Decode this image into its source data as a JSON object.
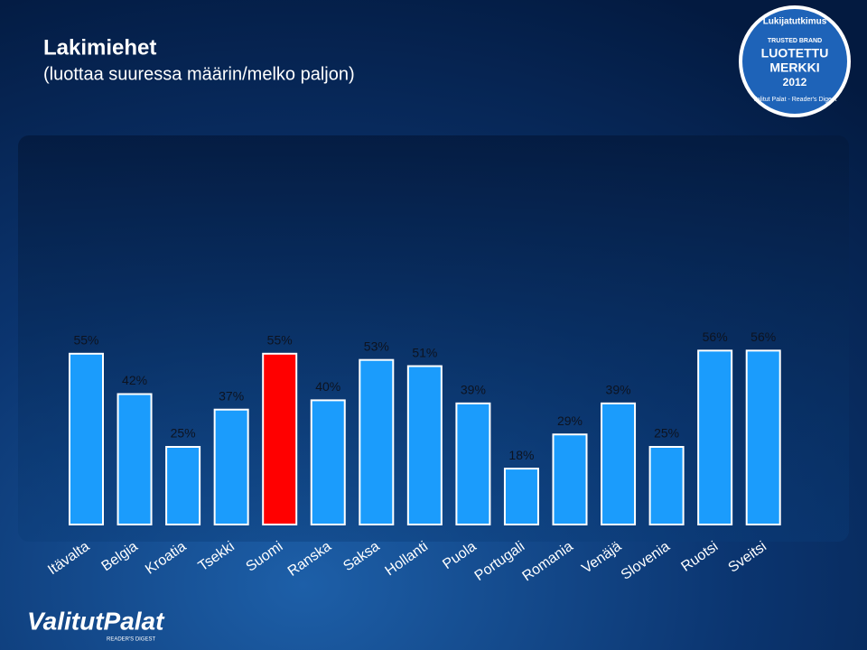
{
  "chart_data": {
    "type": "bar",
    "title": "Lakimiehet",
    "subtitle": "(luottaa suuressa määrin/melko paljon)",
    "categories": [
      "Itävalta",
      "Belgia",
      "Kroatia",
      "Tsekki",
      "Suomi",
      "Ranska",
      "Saksa",
      "Hollanti",
      "Puola",
      "Portugali",
      "Romania",
      "Venäjä",
      "Slovenia",
      "Ruotsi",
      "Sveitsi"
    ],
    "values": [
      55,
      42,
      25,
      37,
      55,
      40,
      53,
      51,
      39,
      18,
      29,
      39,
      25,
      56,
      56
    ],
    "value_labels": [
      "55%",
      "42%",
      "25%",
      "37%",
      "55%",
      "40%",
      "53%",
      "51%",
      "39%",
      "18%",
      "29%",
      "39%",
      "25%",
      "56%",
      "56%"
    ],
    "colors": [
      "#1b9cfc",
      "#1b9cfc",
      "#1b9cfc",
      "#1b9cfc",
      "#ff0000",
      "#1b9cfc",
      "#1b9cfc",
      "#1b9cfc",
      "#1b9cfc",
      "#1b9cfc",
      "#1b9cfc",
      "#1b9cfc",
      "#1b9cfc",
      "#1b9cfc",
      "#1b9cfc"
    ]
  },
  "badge": {
    "top": "Lukijatutkimus",
    "small": "TRUSTED BRAND",
    "line1": "LUOTETTU",
    "line2": "MERKKI",
    "year": "2012",
    "bottom": "Valitut Palat - Reader's Digest"
  },
  "logo": {
    "name": "ValitutPalat",
    "sub": "READER'S DIGEST"
  }
}
